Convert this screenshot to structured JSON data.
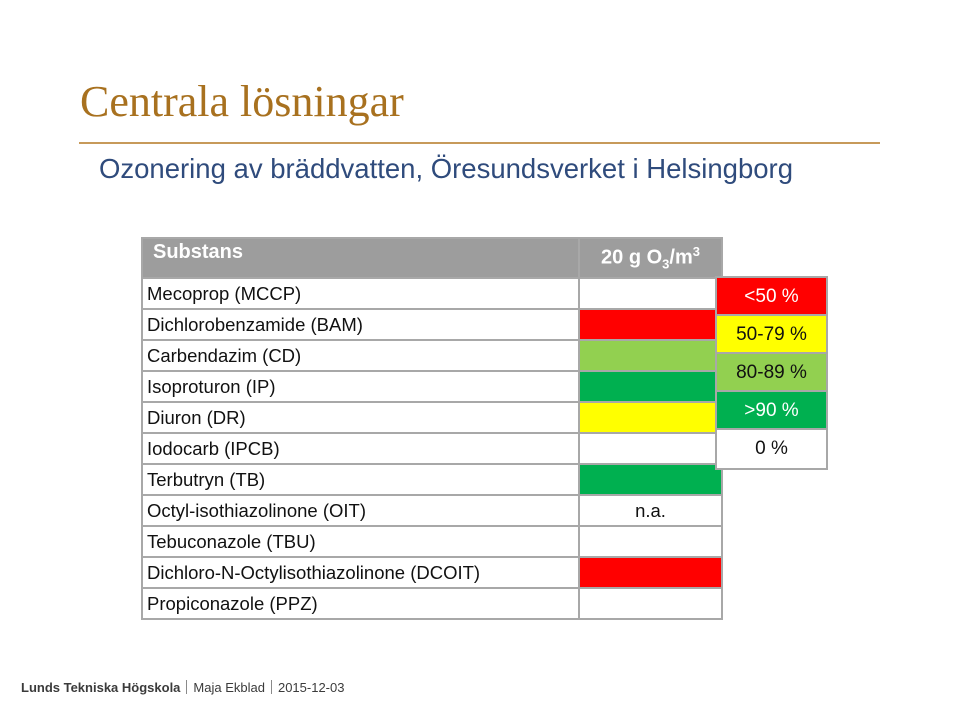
{
  "slide": {
    "title": "Centrala lösningar",
    "subtitle": "Ozonering av bräddvatten, Öresundsverket i Helsingborg"
  },
  "table": {
    "header": {
      "substance": "Substans",
      "dose_prefix": "20 g O",
      "dose_sub": "3",
      "dose_mid": "/m",
      "dose_sup": "3"
    },
    "rows": [
      {
        "name": "Mecoprop (MCCP)",
        "text": "",
        "level": "0 %",
        "color": "#ffffff"
      },
      {
        "name": "Dichlorobenzamide (BAM)",
        "text": "",
        "level": "<50 %",
        "color": "#ff0000"
      },
      {
        "name": "Carbendazim (CD)",
        "text": "",
        "level": "80-89 %",
        "color": "#92d050"
      },
      {
        "name": "Isoproturon (IP)",
        "text": "",
        "level": ">90 %",
        "color": "#00b050"
      },
      {
        "name": "Diuron (DR)",
        "text": "",
        "level": "50-79 %",
        "color": "#ffff00"
      },
      {
        "name": "Iodocarb (IPCB)",
        "text": "",
        "level": "0 %",
        "color": "#ffffff"
      },
      {
        "name": "Terbutryn (TB)",
        "text": "",
        "level": ">90 %",
        "color": "#00b050"
      },
      {
        "name": "Octyl-isothiazolinone (OIT)",
        "text": "n.a.",
        "level": "",
        "color": "#ffffff"
      },
      {
        "name": "Tebuconazole (TBU)",
        "text": "",
        "level": "0 %",
        "color": "#ffffff"
      },
      {
        "name": "Dichloro-N-Octylisothiazolinone (DCOIT)",
        "text": "",
        "level": "<50 %",
        "color": "#ff0000"
      },
      {
        "name": "Propiconazole (PPZ)",
        "text": "",
        "level": "0 %",
        "color": "#ffffff"
      }
    ]
  },
  "legend": [
    {
      "label": "<50 %",
      "color": "#ff0000",
      "text_color": "#ffffff"
    },
    {
      "label": "50-79 %",
      "color": "#ffff00",
      "text_color": "#111111"
    },
    {
      "label": "80-89 %",
      "color": "#92d050",
      "text_color": "#111111"
    },
    {
      "label": ">90 %",
      "color": "#00b050",
      "text_color": "#ffffff"
    },
    {
      "label": "0 %",
      "color": "#ffffff",
      "text_color": "#111111"
    }
  ],
  "footer": {
    "org": "Lunds Tekniska Högskola",
    "author": "Maja Ekblad",
    "date": "2015-12-03"
  }
}
